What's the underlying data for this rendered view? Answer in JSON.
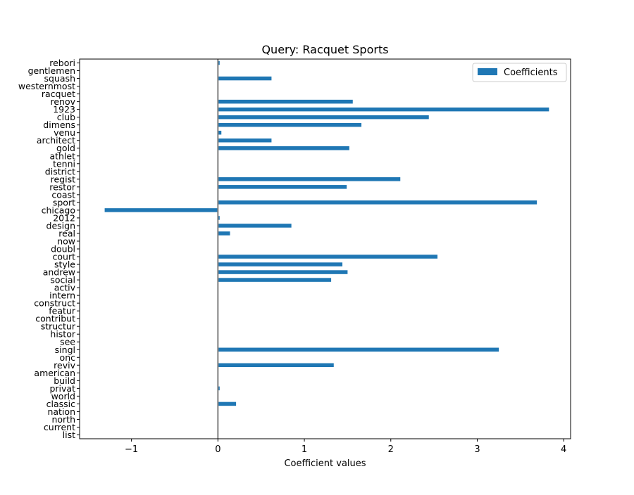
{
  "chart_data": {
    "type": "bar",
    "orientation": "horizontal",
    "title": "Query: Racquet Sports",
    "xlabel": "Coefficient values",
    "ylabel": "",
    "xlim": [
      -1.6,
      4.08
    ],
    "xticks": [
      -1,
      0,
      1,
      2,
      3,
      4
    ],
    "xtick_labels": [
      "−1",
      "0",
      "1",
      "2",
      "3",
      "4"
    ],
    "legend": {
      "entries": [
        "Coefficients"
      ],
      "placement": "top-right"
    },
    "grid": false,
    "zero_line": true,
    "bar_color": "#1f77b4",
    "zero_line_color": "#808080",
    "categories": [
      "rebori",
      "gentlemen",
      "squash",
      "westernmost",
      "racquet",
      "renov",
      "1923",
      "club",
      "dimens",
      "venu",
      "architect",
      "gold",
      "athlet",
      "tenni",
      "district",
      "regist",
      "restor",
      "coast",
      "sport",
      "chicago",
      "2012",
      "design",
      "real",
      "now",
      "doubl",
      "court",
      "style",
      "andrew",
      "social",
      "activ",
      "intern",
      "construct",
      "featur",
      "contribut",
      "structur",
      "histor",
      "see",
      "singl",
      "onc",
      "reviv",
      "american",
      "build",
      "privat",
      "world",
      "classic",
      "nation",
      "north",
      "current",
      "list"
    ],
    "series": [
      {
        "name": "Coefficients",
        "values": [
          0.02,
          0,
          0.62,
          0,
          0,
          1.56,
          3.83,
          2.44,
          1.66,
          0.04,
          0.62,
          1.52,
          0,
          0,
          0,
          2.11,
          1.49,
          0,
          3.69,
          -1.31,
          0.02,
          0.85,
          0.14,
          0,
          0,
          2.54,
          1.44,
          1.5,
          1.31,
          0,
          0,
          0,
          0,
          0,
          0,
          0,
          0,
          3.25,
          0,
          1.34,
          0,
          0,
          0.02,
          0,
          0.21,
          0,
          0,
          0,
          0
        ]
      }
    ]
  }
}
